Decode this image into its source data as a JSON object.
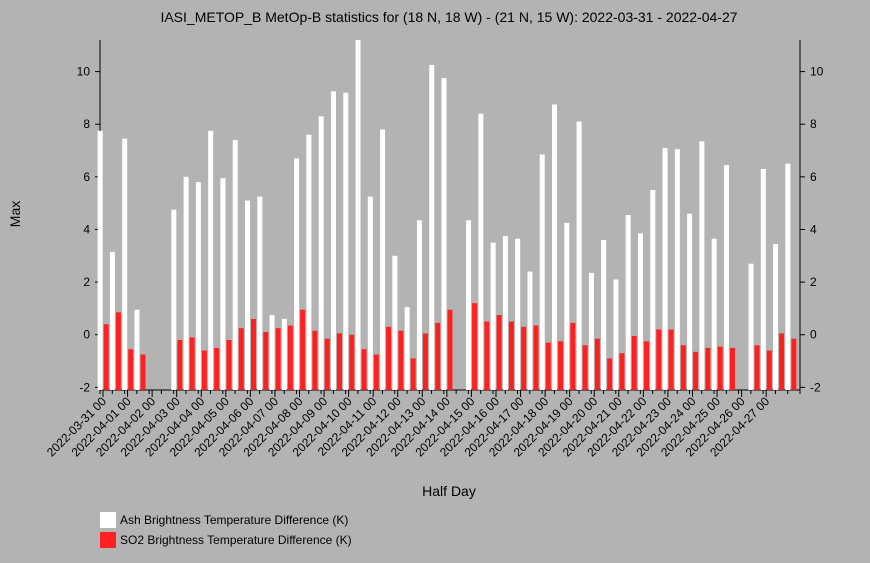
{
  "chart_data": {
    "type": "bar",
    "title": "IASI_METOP_B MetOp-B statistics for (18 N, 18 W) - (21 N, 15 W): 2022-03-31 - 2022-04-27",
    "xlabel": "Half Day",
    "ylabel": "Max",
    "ylim": [
      -2.1,
      11.2
    ],
    "yticks": [
      -2,
      0,
      2,
      4,
      6,
      8,
      10
    ],
    "x_ticks": [
      "2022-03-31 00",
      "2022-04-01 00",
      "2022-04-02 00",
      "2022-04-03 00",
      "2022-04-04 00",
      "2022-04-05 00",
      "2022-04-06 00",
      "2022-04-07 00",
      "2022-04-08 00",
      "2022-04-09 00",
      "2022-04-10 00",
      "2022-04-11 00",
      "2022-04-12 00",
      "2022-04-13 00",
      "2022-04-14 00",
      "2022-04-15 00",
      "2022-04-16 00",
      "2022-04-17 00",
      "2022-04-18 00",
      "2022-04-19 00",
      "2022-04-20 00",
      "2022-04-21 00",
      "2022-04-22 00",
      "2022-04-23 00",
      "2022-04-24 00",
      "2022-04-25 00",
      "2022-04-26 00",
      "2022-04-27 00"
    ],
    "series": [
      {
        "name": "Ash Brightness Temperature Difference (K)",
        "color": "#ffffff",
        "values": [
          7.75,
          3.15,
          7.45,
          0.95,
          null,
          null,
          4.75,
          6.0,
          5.8,
          7.75,
          5.95,
          7.4,
          5.1,
          5.25,
          0.75,
          0.6,
          6.7,
          7.6,
          8.3,
          9.25,
          9.2,
          11.2,
          5.25,
          7.8,
          3.0,
          1.05,
          4.35,
          10.25,
          9.75,
          null,
          4.35,
          8.4,
          3.5,
          3.75,
          3.65,
          2.4,
          6.85,
          8.75,
          4.25,
          8.1,
          2.35,
          3.6,
          2.1,
          4.55,
          3.85,
          5.5,
          7.1,
          7.05,
          4.6,
          7.35,
          3.65,
          6.45,
          null,
          2.7,
          6.3,
          3.45,
          6.5
        ]
      },
      {
        "name": "SO2 Brightness Temperature Difference (K)",
        "color": "#ff2020",
        "values": [
          0.4,
          0.85,
          -0.55,
          -0.75,
          null,
          null,
          -0.2,
          -0.1,
          -0.6,
          -0.5,
          -0.2,
          0.25,
          0.6,
          0.1,
          0.25,
          0.35,
          0.95,
          0.15,
          -0.15,
          0.05,
          0.0,
          -0.55,
          -0.75,
          0.3,
          0.15,
          -0.9,
          0.05,
          0.45,
          0.95,
          null,
          1.2,
          0.5,
          0.75,
          0.5,
          0.3,
          0.35,
          -0.3,
          -0.25,
          0.45,
          -0.4,
          -0.15,
          -0.9,
          -0.7,
          -0.05,
          -0.25,
          0.2,
          0.2,
          -0.4,
          -0.65,
          -0.5,
          -0.45,
          -0.5,
          null,
          -0.4,
          -0.6,
          0.05,
          -0.15
        ]
      }
    ],
    "legend_position": "bottom-left",
    "grid": false
  }
}
